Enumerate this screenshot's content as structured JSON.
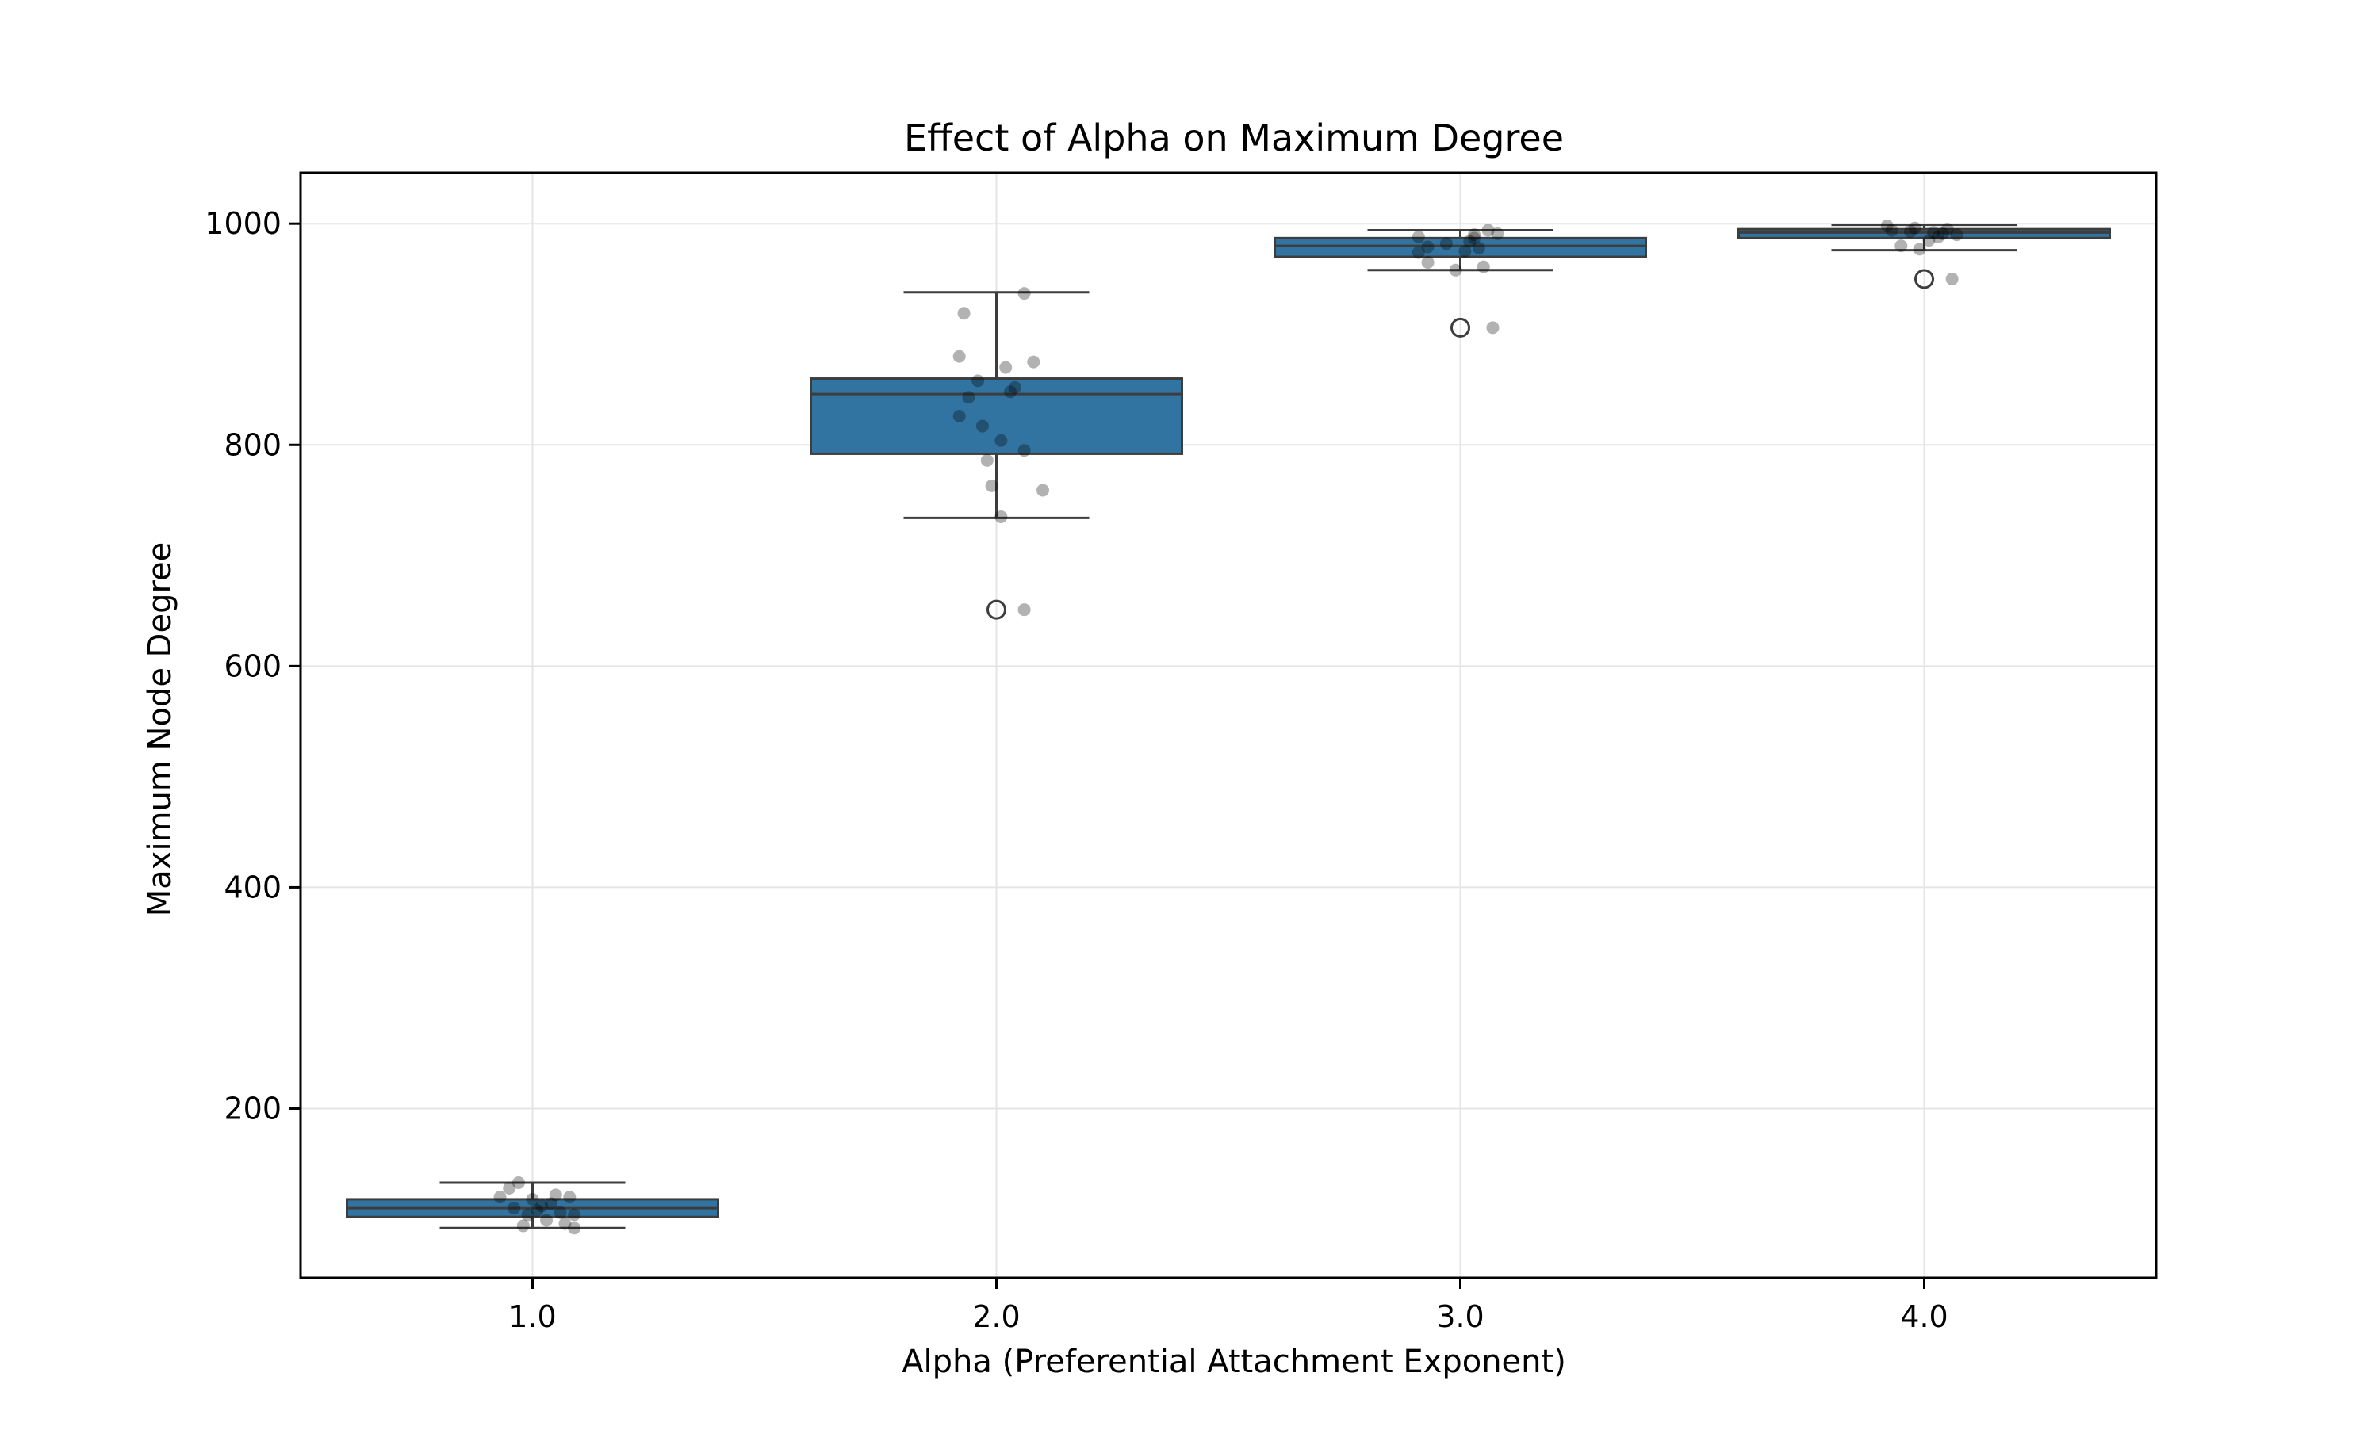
{
  "chart_data": {
    "type": "box",
    "title": "Effect of Alpha on Maximum Degree",
    "xlabel": "Alpha (Preferential Attachment Exponent)",
    "ylabel": "Maximum Node Degree",
    "categories": [
      "1.0",
      "2.0",
      "3.0",
      "4.0"
    ],
    "ylim": [
      47,
      1046
    ],
    "yticks": [
      200,
      400,
      600,
      800,
      1000
    ],
    "grid": true,
    "colors": {
      "box_fill": "#3274a1",
      "box_edge": "#3d3d3d",
      "points": "#000000",
      "grid": "#e5e5e5"
    },
    "boxes": [
      {
        "category": "1.0",
        "whisker_low": 92,
        "q1": 102,
        "median": 110,
        "q3": 118,
        "whisker_high": 133,
        "outliers": []
      },
      {
        "category": "2.0",
        "whisker_low": 734,
        "q1": 792,
        "median": 846,
        "q3": 860,
        "whisker_high": 938,
        "outliers": [
          651
        ]
      },
      {
        "category": "3.0",
        "whisker_low": 958,
        "q1": 970,
        "median": 980,
        "q3": 987,
        "whisker_high": 994,
        "outliers": [
          906
        ]
      },
      {
        "category": "4.0",
        "whisker_low": 976,
        "q1": 987,
        "median": 992,
        "q3": 995,
        "whisker_high": 999,
        "outliers": [
          950
        ]
      }
    ],
    "points": [
      {
        "x": 0.93,
        "y": 120
      },
      {
        "x": 0.95,
        "y": 128
      },
      {
        "x": 0.97,
        "y": 133
      },
      {
        "x": 0.96,
        "y": 110
      },
      {
        "x": 0.99,
        "y": 104
      },
      {
        "x": 1.0,
        "y": 118
      },
      {
        "x": 1.02,
        "y": 112
      },
      {
        "x": 1.03,
        "y": 99
      },
      {
        "x": 0.98,
        "y": 94
      },
      {
        "x": 1.05,
        "y": 122
      },
      {
        "x": 1.06,
        "y": 106
      },
      {
        "x": 1.07,
        "y": 96
      },
      {
        "x": 1.08,
        "y": 120
      },
      {
        "x": 1.04,
        "y": 114
      },
      {
        "x": 1.09,
        "y": 104
      },
      {
        "x": 1.01,
        "y": 108
      },
      {
        "x": 1.09,
        "y": 92
      },
      {
        "x": 1.93,
        "y": 919
      },
      {
        "x": 1.92,
        "y": 880
      },
      {
        "x": 1.96,
        "y": 858
      },
      {
        "x": 1.94,
        "y": 843
      },
      {
        "x": 1.92,
        "y": 826
      },
      {
        "x": 1.97,
        "y": 817
      },
      {
        "x": 2.01,
        "y": 804
      },
      {
        "x": 1.98,
        "y": 786
      },
      {
        "x": 1.99,
        "y": 763
      },
      {
        "x": 2.01,
        "y": 735
      },
      {
        "x": 2.02,
        "y": 870
      },
      {
        "x": 2.03,
        "y": 848
      },
      {
        "x": 2.04,
        "y": 852
      },
      {
        "x": 2.06,
        "y": 795
      },
      {
        "x": 2.06,
        "y": 937
      },
      {
        "x": 2.08,
        "y": 875
      },
      {
        "x": 2.1,
        "y": 759
      },
      {
        "x": 2.06,
        "y": 651
      },
      {
        "x": 2.91,
        "y": 988
      },
      {
        "x": 2.93,
        "y": 979
      },
      {
        "x": 2.91,
        "y": 974
      },
      {
        "x": 2.93,
        "y": 965
      },
      {
        "x": 2.97,
        "y": 982
      },
      {
        "x": 2.99,
        "y": 958
      },
      {
        "x": 3.01,
        "y": 975
      },
      {
        "x": 3.02,
        "y": 984
      },
      {
        "x": 3.03,
        "y": 987
      },
      {
        "x": 3.04,
        "y": 978
      },
      {
        "x": 3.05,
        "y": 961
      },
      {
        "x": 3.06,
        "y": 994
      },
      {
        "x": 3.08,
        "y": 991
      },
      {
        "x": 3.03,
        "y": 990
      },
      {
        "x": 3.07,
        "y": 906
      },
      {
        "x": 3.92,
        "y": 998
      },
      {
        "x": 3.93,
        "y": 994
      },
      {
        "x": 3.95,
        "y": 980
      },
      {
        "x": 3.97,
        "y": 993
      },
      {
        "x": 3.98,
        "y": 996
      },
      {
        "x": 3.99,
        "y": 977
      },
      {
        "x": 4.01,
        "y": 985
      },
      {
        "x": 4.02,
        "y": 992
      },
      {
        "x": 4.03,
        "y": 988
      },
      {
        "x": 4.04,
        "y": 991
      },
      {
        "x": 4.05,
        "y": 995
      },
      {
        "x": 4.07,
        "y": 990
      },
      {
        "x": 4.06,
        "y": 950
      }
    ]
  }
}
